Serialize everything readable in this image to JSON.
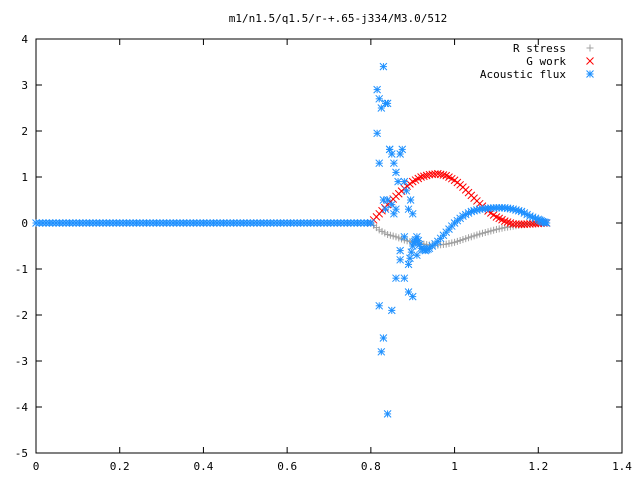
{
  "chart_data": {
    "type": "scatter",
    "title": "m1/n1.5/q1.5/r-+.65-j334/M3.0/512",
    "xlabel": "",
    "ylabel": "",
    "xlim": [
      0,
      1.4
    ],
    "ylim": [
      -5,
      4
    ],
    "xticks": [
      0,
      0.2,
      0.4,
      0.6,
      0.8,
      1,
      1.2,
      1.4
    ],
    "xtick_labels": [
      "0",
      "0.2",
      "0.4",
      "0.6",
      "0.8",
      "1",
      "1.2",
      "1.4"
    ],
    "yticks": [
      4,
      3,
      2,
      1,
      0,
      -1,
      -2,
      -3,
      -4,
      -5
    ],
    "ytick_labels": [
      "4",
      "3",
      "2",
      "1",
      "0",
      "-1",
      "-2",
      "-3",
      "-4",
      "-5"
    ],
    "grid": false,
    "legend_position": "top-right",
    "series": [
      {
        "name": "R stress",
        "marker": "plus",
        "color": "#a0a0a0",
        "x": [
          0.8,
          0.82,
          0.84,
          0.86,
          0.88,
          0.9,
          0.92,
          0.94,
          0.96,
          0.98,
          1.0,
          1.02,
          1.04,
          1.06,
          1.08,
          1.1,
          1.12,
          1.14,
          1.16,
          1.18,
          1.2,
          1.22
        ],
        "y": [
          0.0,
          -0.15,
          -0.25,
          -0.3,
          -0.37,
          -0.42,
          -0.45,
          -0.48,
          -0.48,
          -0.46,
          -0.42,
          -0.36,
          -0.3,
          -0.24,
          -0.19,
          -0.14,
          -0.1,
          -0.07,
          -0.04,
          -0.02,
          -0.01,
          0.0
        ]
      },
      {
        "name": "G work",
        "marker": "cross",
        "color": "#ff0000",
        "x": [
          0.8,
          0.82,
          0.84,
          0.86,
          0.88,
          0.9,
          0.92,
          0.94,
          0.96,
          0.98,
          1.0,
          1.02,
          1.04,
          1.06,
          1.08,
          1.1,
          1.12,
          1.14,
          1.16,
          1.18,
          1.2,
          1.22
        ],
        "y": [
          0.0,
          0.2,
          0.4,
          0.58,
          0.75,
          0.9,
          1.0,
          1.05,
          1.07,
          1.03,
          0.93,
          0.78,
          0.6,
          0.42,
          0.26,
          0.13,
          0.04,
          -0.02,
          -0.03,
          -0.02,
          -0.01,
          0.0
        ]
      },
      {
        "name": "Acoustic flux",
        "marker": "star",
        "color": "#1e90ff",
        "x": [
          0.8,
          0.815,
          0.82,
          0.825,
          0.83,
          0.835,
          0.84,
          0.845,
          0.85,
          0.855,
          0.86,
          0.865,
          0.87,
          0.875,
          0.88,
          0.885,
          0.89,
          0.895,
          0.9,
          0.905,
          0.91,
          0.815,
          0.82,
          0.83,
          0.835,
          0.84,
          0.845,
          0.85,
          0.855,
          0.86,
          0.87,
          0.88,
          0.89,
          0.9,
          0.82,
          0.825,
          0.83,
          0.84,
          0.85,
          0.86,
          0.87,
          0.88,
          0.89,
          0.9,
          0.91,
          0.92,
          0.93,
          0.94,
          0.96,
          0.98,
          1.0,
          1.02,
          1.04,
          1.06,
          1.08,
          1.1,
          1.12,
          1.14,
          1.16,
          1.18,
          1.2,
          1.21,
          1.22
        ],
        "y": [
          0.0,
          2.9,
          2.7,
          2.5,
          3.4,
          2.6,
          2.6,
          1.6,
          1.5,
          1.3,
          1.1,
          0.9,
          1.5,
          1.6,
          0.9,
          0.7,
          0.3,
          0.5,
          0.2,
          -0.4,
          -0.7,
          1.95,
          1.3,
          0.5,
          0.3,
          0.5,
          1.6,
          0.4,
          0.2,
          0.3,
          -0.8,
          -1.2,
          -1.5,
          -1.6,
          -1.8,
          -2.8,
          -2.5,
          -4.15,
          -1.9,
          -1.2,
          -0.6,
          -0.3,
          -0.9,
          -0.5,
          -0.3,
          -0.55,
          -0.6,
          -0.55,
          -0.4,
          -0.2,
          0.0,
          0.15,
          0.25,
          0.3,
          0.32,
          0.33,
          0.33,
          0.3,
          0.25,
          0.15,
          0.08,
          0.03,
          0.0
        ],
        "baseline": {
          "x_from": 0.0,
          "x_to": 0.8,
          "y": 0.0,
          "step": 0.008
        }
      }
    ]
  }
}
